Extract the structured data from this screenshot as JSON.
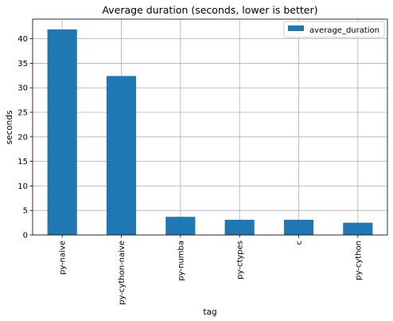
{
  "chart_data": {
    "type": "bar",
    "title": "Average duration (seconds, lower is better)",
    "xlabel": "tag",
    "ylabel": "seconds",
    "categories": [
      "py-naive",
      "py-cython-naive",
      "py-numba",
      "py-ctypes",
      "c",
      "py-cython"
    ],
    "series": [
      {
        "name": "average_duration",
        "values": [
          41.9,
          32.4,
          3.7,
          3.1,
          3.1,
          2.5
        ]
      }
    ],
    "ylim": [
      0,
      44
    ],
    "yticks": [
      0,
      5,
      10,
      15,
      20,
      25,
      30,
      35,
      40
    ],
    "grid": true,
    "legend_position": "top-right",
    "colors": {
      "bar": "#1f77b4",
      "grid": "#b0b0b0",
      "axes": "#000000"
    }
  }
}
